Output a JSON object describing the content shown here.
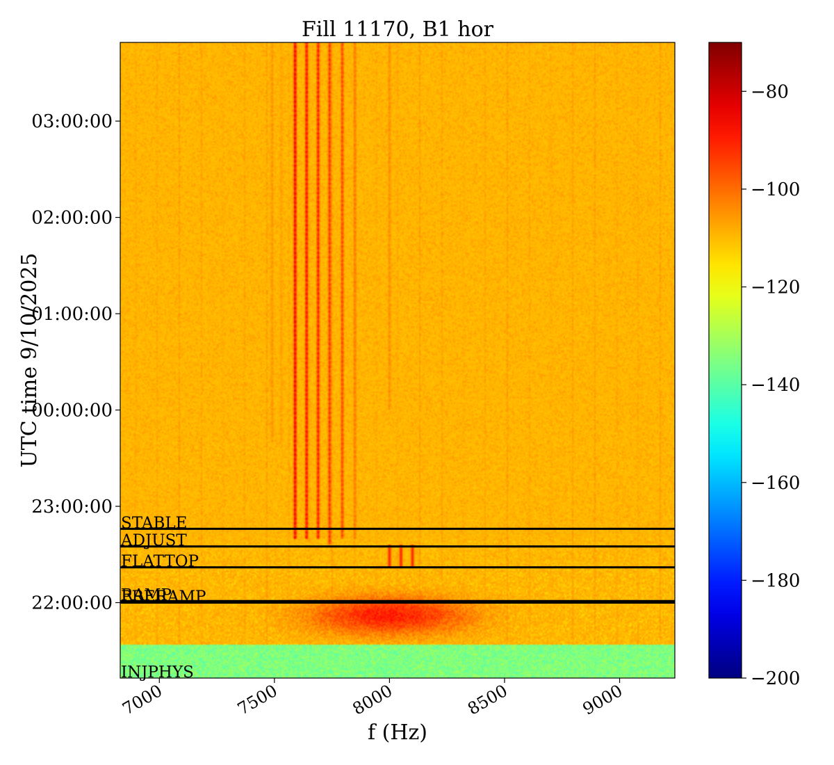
{
  "chart_data": {
    "type": "heatmap",
    "title": "Fill 11170, B1 hor",
    "xlabel": "f (Hz)",
    "ylabel": "UTC time 9/10/2025",
    "xlim": [
      6830,
      9240
    ],
    "xticks": [
      7000,
      7500,
      8000,
      8500,
      9000
    ],
    "xtick_labels": [
      "7000",
      "7500",
      "8000",
      "8500",
      "9000"
    ],
    "time_ticks": [
      {
        "label": "03:00:00",
        "t": 300
      },
      {
        "label": "02:00:00",
        "t": 240
      },
      {
        "label": "01:00:00",
        "t": 180
      },
      {
        "label": "00:00:00",
        "t": 120
      },
      {
        "label": "23:00:00",
        "t": 60
      },
      {
        "label": "22:00:00",
        "t": 0
      }
    ],
    "ylim_minutes_rel_22h": [
      -47,
      349
    ],
    "colorbar": {
      "colormap": "jet",
      "range": [
        -200,
        -70
      ],
      "ticks": [
        -80,
        -100,
        -120,
        -140,
        -160,
        -180,
        -200
      ],
      "tick_labels": [
        "−80",
        "−100",
        "−120",
        "−140",
        "−160",
        "−180",
        "−200"
      ]
    },
    "background_level_db": -112,
    "low_region": {
      "t_range": [
        -47,
        -26
      ],
      "level_db": -135
    },
    "beam_modes": [
      {
        "name": "STABLE",
        "t": 46
      },
      {
        "name": "ADJUST",
        "t": 35
      },
      {
        "name": "FLATTOP",
        "t": 22
      },
      {
        "name": "RAMP",
        "t": 1
      },
      {
        "name": "PRERAMP",
        "t": 0
      },
      {
        "name": "INJPHYS",
        "t": -47
      }
    ],
    "lines": [
      {
        "f": 7590,
        "level_db": -82,
        "t_start": 40,
        "t_end": 349
      },
      {
        "f": 7640,
        "level_db": -85,
        "t_start": 40,
        "t_end": 349
      },
      {
        "f": 7690,
        "level_db": -87,
        "t_start": 40,
        "t_end": 349
      },
      {
        "f": 7740,
        "level_db": -90,
        "t_start": 36,
        "t_end": 349
      },
      {
        "f": 7795,
        "level_db": -93,
        "t_start": 40,
        "t_end": 349
      },
      {
        "f": 7850,
        "level_db": -100,
        "t_start": 40,
        "t_end": 349
      },
      {
        "f": 7490,
        "level_db": -104,
        "t_start": 100,
        "t_end": 349
      },
      {
        "f": 7530,
        "level_db": -106,
        "t_start": 100,
        "t_end": 349
      },
      {
        "f": 8000,
        "level_db": -103,
        "t_start": 120,
        "t_end": 349
      }
    ]
  }
}
